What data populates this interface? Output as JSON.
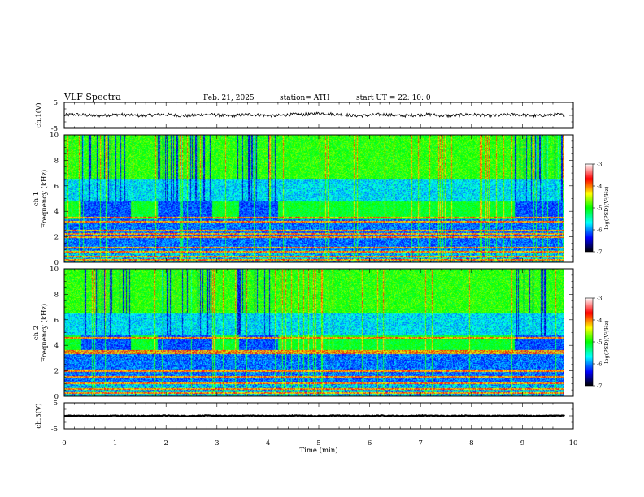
{
  "header": {
    "title": "VLF  Spectra",
    "date": "Feb. 21, 2025",
    "station": "station= ATH",
    "start": "start  UT  =    22: 10: 0"
  },
  "chart_data": [
    {
      "type": "line",
      "id": "ch1-waveform",
      "ylabel": "ch.1(V)",
      "ylim": [
        -5,
        5
      ],
      "yticks": [
        "5",
        "-5"
      ],
      "xlim": [
        0,
        10
      ],
      "x_end": 9.83,
      "baseline": 0.1,
      "noise_amplitude": 0.6,
      "bump": {
        "x": 5.0,
        "width": 0.25,
        "height": 0.9
      }
    },
    {
      "type": "heatmap",
      "id": "ch1-spectrogram",
      "ylabel": "ch.1 Frequency  (kHz)",
      "ylim": [
        0,
        10
      ],
      "yticks": [
        "0",
        "2",
        "4",
        "6",
        "8",
        "10"
      ],
      "xlim": [
        0,
        10
      ],
      "x_end": 9.83,
      "bright_blocks_4khz": [
        [
          0,
          0.33
        ],
        [
          1.3,
          1.83
        ],
        [
          2.9,
          3.43
        ],
        [
          4.2,
          8.85
        ]
      ],
      "lines_khz": [
        0.2,
        0.5,
        0.85,
        1.2,
        2.0,
        2.25,
        2.5,
        3.2,
        3.55
      ],
      "colorbar": {
        "label": "log(PSD)(V²/Hz)",
        "range": [
          -7,
          -3
        ],
        "ticks": [
          "-3",
          "-4",
          "-5",
          "-6",
          "-7"
        ]
      }
    },
    {
      "type": "heatmap",
      "id": "ch2-spectrogram",
      "ylabel": "ch.2 Frequency  (kHz)",
      "ylim": [
        0,
        10
      ],
      "yticks": [
        "0",
        "2",
        "4",
        "6",
        "8",
        "10"
      ],
      "xlim": [
        0,
        10
      ],
      "x_end": 9.83,
      "bright_blocks_4khz": [
        [
          0,
          0.33
        ],
        [
          1.3,
          1.83
        ],
        [
          2.9,
          3.43
        ],
        [
          4.2,
          8.85
        ]
      ],
      "lines_khz": [
        0.3,
        0.6,
        1.05,
        1.55,
        2.0,
        2.1,
        3.4,
        3.6,
        4.6
      ],
      "colorbar": {
        "label": "log(PSD)(V²/Hz)",
        "range": [
          -7,
          -3
        ],
        "ticks": [
          "-3",
          "-4",
          "-5",
          "-6",
          "-7"
        ]
      }
    },
    {
      "type": "line",
      "id": "ch3-waveform",
      "ylabel": "ch.3(V)",
      "ylim": [
        -5,
        5
      ],
      "yticks": [
        "5",
        "-5"
      ],
      "xlim": [
        0,
        10
      ],
      "x_end": 9.83,
      "baseline": 0.0,
      "noise_amplitude": 0.15
    }
  ],
  "xaxis": {
    "label": "Time  (min)",
    "ticks": [
      "0",
      "1",
      "2",
      "3",
      "4",
      "5",
      "6",
      "7",
      "8",
      "9",
      "10"
    ],
    "range": [
      0,
      10
    ]
  },
  "colors": {
    "trace": "#000000",
    "colormap": [
      "#000000",
      "#0000ff",
      "#00ffff",
      "#00ff00",
      "#ffff00",
      "#ff0000",
      "#ffffff"
    ]
  }
}
